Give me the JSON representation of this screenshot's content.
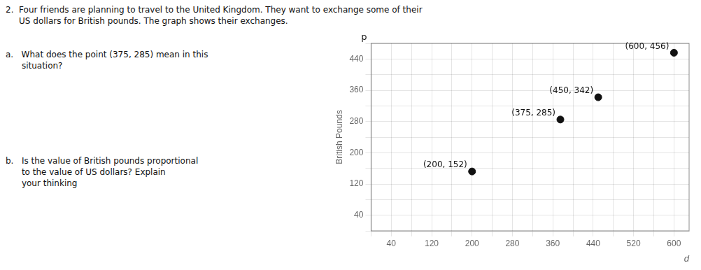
{
  "chart_data": {
    "type": "scatter",
    "x": [
      200,
      375,
      450,
      600
    ],
    "values": [
      152,
      285,
      342,
      456
    ],
    "value_labels": [
      "(200, 152)",
      "(375, 285)",
      "(450, 342)",
      "(600, 456)"
    ],
    "data_labels": true,
    "color": "#111111",
    "marker": "circle",
    "xlabel": "d",
    "ylabel": "British Pounds",
    "ylabel_top": "p",
    "annotations": [
      "2.  Four friends are planning to travel to the United Kingdom. They want to exchange some of their",
      "     US dollars for British pounds. The graph shows their exchanges.",
      "a.   What does the point (375, 285) mean in this",
      "      situation?",
      "b.   Is the value of British pounds proportional",
      "      to the value of US dollars? Explain",
      "      your thinking"
    ],
    "xlim": [
      0,
      630
    ],
    "ylim": [
      0,
      480
    ],
    "xticks": [
      {
        "value": 0,
        "label": null
      },
      40,
      {
        "value": 80,
        "label": null
      },
      120,
      {
        "value": 160,
        "label": null
      },
      200,
      {
        "value": 240,
        "label": null
      },
      280,
      {
        "value": 320,
        "label": null
      },
      360,
      {
        "value": 400,
        "label": null
      },
      440,
      {
        "value": 480,
        "label": null
      },
      520,
      {
        "value": 560,
        "label": null
      },
      600
    ],
    "yticks": [
      {
        "value": 0,
        "label": null
      },
      40,
      {
        "value": 80,
        "label": null
      },
      120,
      {
        "value": 160,
        "label": null
      },
      200,
      {
        "value": 240,
        "label": null
      },
      280,
      {
        "value": 320,
        "label": null
      },
      360,
      {
        "value": 400,
        "label": null
      },
      440,
      {
        "value": 480,
        "label": null
      }
    ],
    "grid": true
  }
}
